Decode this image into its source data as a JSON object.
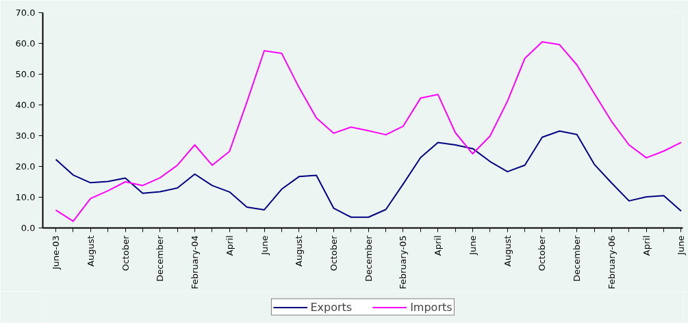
{
  "chart_data": {
    "type": "line",
    "categories": [
      "June-03",
      null,
      "August",
      null,
      "October",
      null,
      "December",
      null,
      "February-04",
      null,
      "April",
      null,
      "June",
      null,
      "August",
      null,
      "October",
      null,
      "December",
      null,
      "February-05",
      null,
      "April",
      null,
      "June",
      null,
      "August",
      null,
      "October",
      null,
      "December",
      null,
      "February-06",
      null,
      "April",
      null,
      "June"
    ],
    "series": [
      {
        "name": "Exports",
        "color": "#000080",
        "values": [
          22.3,
          17.2,
          14.7,
          15.1,
          16.2,
          11.3,
          11.8,
          13.0,
          17.5,
          13.8,
          11.7,
          6.8,
          5.9,
          12.6,
          16.7,
          17.1,
          6.4,
          3.5,
          3.5,
          6.0,
          14.3,
          22.9,
          27.8,
          27.0,
          25.8,
          21.6,
          18.3,
          20.4,
          29.5,
          31.5,
          30.4,
          20.7,
          14.6,
          8.8,
          10.1,
          10.5,
          5.5
        ]
      },
      {
        "name": "Imports",
        "color": "#ff00ff",
        "values": [
          5.8,
          2.2,
          9.6,
          12.1,
          15.0,
          13.8,
          16.3,
          20.4,
          27.0,
          20.4,
          24.9,
          40.9,
          57.6,
          56.8,
          45.7,
          35.8,
          30.8,
          32.8,
          31.6,
          30.3,
          33.1,
          42.2,
          43.4,
          31.0,
          24.1,
          29.9,
          41.2,
          55.1,
          60.5,
          59.6,
          53.0,
          43.7,
          34.6,
          27.0,
          22.8,
          25.0,
          27.8
        ]
      }
    ],
    "ylim": [
      0,
      70
    ],
    "yticks": [
      {
        "value": 0,
        "label": "0.0"
      },
      {
        "value": 10,
        "label": "10.0"
      },
      {
        "value": 20,
        "label": "20.0"
      },
      {
        "value": 30,
        "label": "30.0"
      },
      {
        "value": 40,
        "label": "40.0"
      },
      {
        "value": 50,
        "label": "50.0"
      },
      {
        "value": 60,
        "label": "60.0"
      },
      {
        "value": 70,
        "label": "70.0"
      }
    ],
    "grid": false,
    "legend": "bottom",
    "marker": "none",
    "line_style": "solid"
  }
}
